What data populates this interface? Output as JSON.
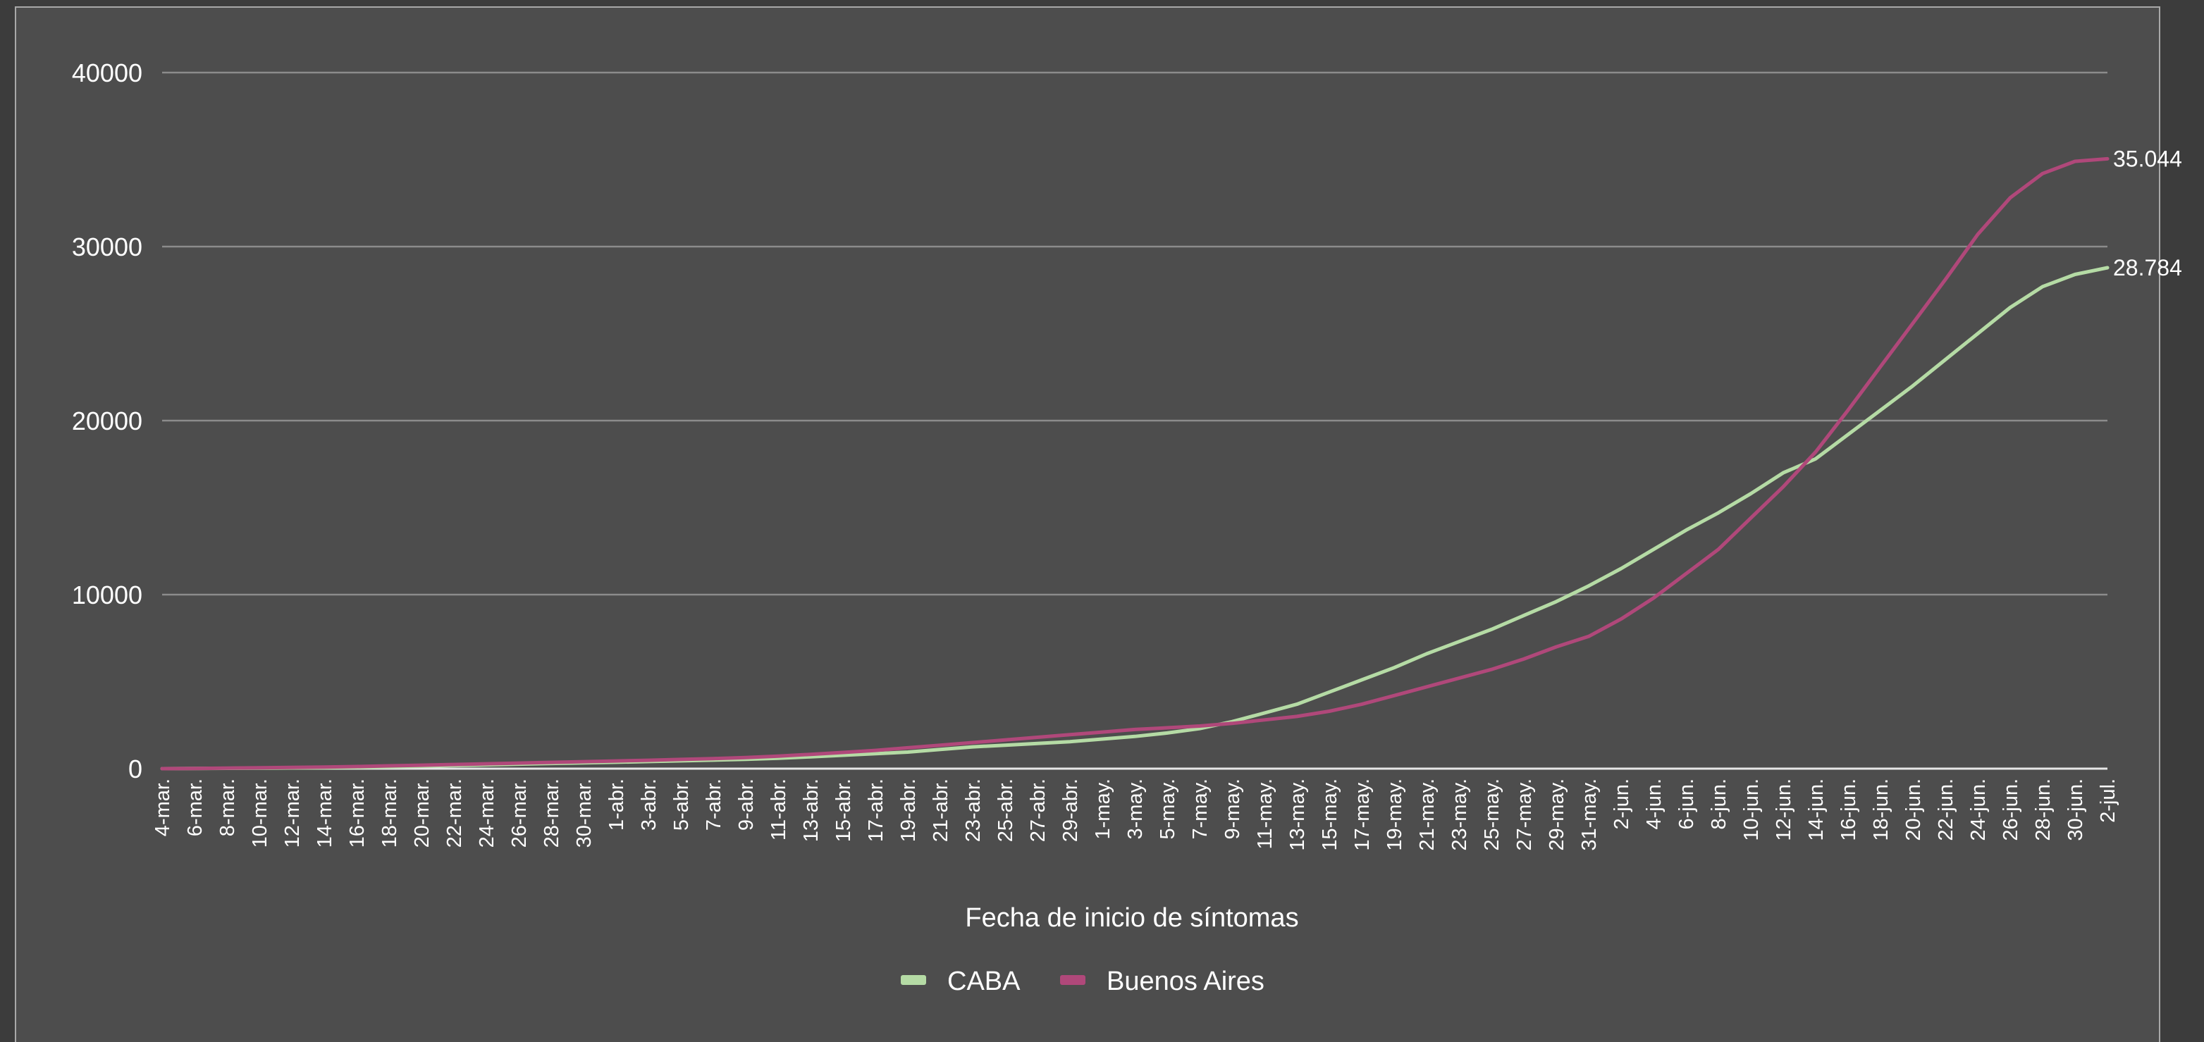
{
  "chart_data": {
    "type": "line",
    "xlabel": "Fecha de inicio de síntomas",
    "ylabel": "",
    "ylim": [
      0,
      40000
    ],
    "yticks": [
      "0",
      "10000",
      "20000",
      "30000",
      "40000"
    ],
    "grid": true,
    "legend_position": "bottom-center",
    "tick_labels": [
      "4-mar.",
      "6-mar.",
      "8-mar.",
      "10-mar.",
      "12-mar.",
      "14-mar.",
      "16-mar.",
      "18-mar.",
      "20-mar.",
      "22-mar.",
      "24-mar.",
      "26-mar.",
      "28-mar.",
      "30-mar.",
      "1-abr.",
      "3-abr.",
      "5-abr.",
      "7-abr.",
      "9-abr.",
      "11-abr.",
      "13-abr.",
      "15-abr.",
      "17-abr.",
      "19-abr.",
      "21-abr.",
      "23-abr.",
      "25-abr.",
      "27-abr.",
      "29-abr.",
      "1-may.",
      "3-may.",
      "5-may.",
      "7-may.",
      "9-may.",
      "11-may.",
      "13-may.",
      "15-may.",
      "17-may.",
      "19-may.",
      "21-may.",
      "23-may.",
      "25-may.",
      "27-may.",
      "29-may.",
      "31-may.",
      "2-jun.",
      "4-jun.",
      "6-jun.",
      "8-jun.",
      "10-jun.",
      "12-jun.",
      "14-jun.",
      "16-jun.",
      "18-jun.",
      "20-jun.",
      "22-jun.",
      "24-jun.",
      "26-jun.",
      "28-jun.",
      "30-jun.",
      "2-jul."
    ],
    "series": [
      {
        "name": "CABA",
        "color": "#b5dba5",
        "end_label": "28.784",
        "values": [
          0,
          10,
          20,
          30,
          40,
          50,
          70,
          100,
          140,
          180,
          220,
          260,
          300,
          330,
          370,
          410,
          450,
          490,
          540,
          600,
          680,
          770,
          860,
          950,
          1100,
          1250,
          1350,
          1450,
          1550,
          1700,
          1850,
          2050,
          2300,
          2700,
          3200,
          3700,
          4400,
          5100,
          5800,
          6600,
          7300,
          8000,
          8800,
          9600,
          10500,
          11500,
          12600,
          13700,
          14700,
          15800,
          17000,
          17800,
          19200,
          20600,
          22000,
          23500,
          25000,
          26500,
          27700,
          28400,
          28784
        ]
      },
      {
        "name": "Buenos Aires",
        "color": "#b0487a",
        "end_label": "35.044",
        "values": [
          0,
          10,
          30,
          50,
          70,
          90,
          120,
          160,
          200,
          240,
          280,
          320,
          360,
          400,
          440,
          480,
          530,
          580,
          640,
          720,
          820,
          930,
          1050,
          1200,
          1350,
          1500,
          1650,
          1800,
          1950,
          2100,
          2250,
          2350,
          2450,
          2600,
          2800,
          3000,
          3300,
          3700,
          4200,
          4700,
          5200,
          5700,
          6300,
          7000,
          7600,
          8600,
          9800,
          11200,
          12600,
          14400,
          16200,
          18200,
          20600,
          23100,
          25600,
          28100,
          30700,
          32800,
          34200,
          34900,
          35044
        ]
      }
    ]
  }
}
